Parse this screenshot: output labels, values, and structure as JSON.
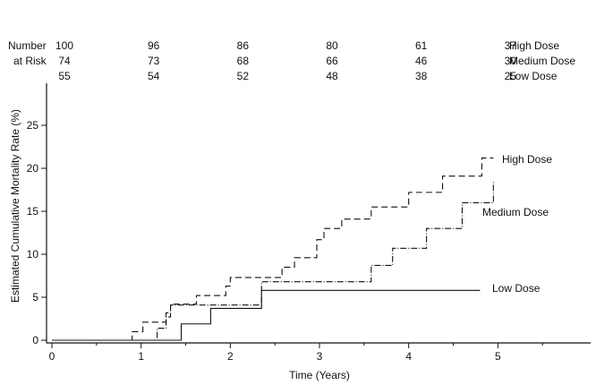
{
  "chart_data": {
    "type": "line",
    "xlabel": "Time (Years)",
    "ylabel": "Estimated Cumulative Mortality Rate (%)",
    "xlim": [
      0,
      6
    ],
    "ylim": [
      0,
      30
    ],
    "x_ticks": [
      "0",
      "1",
      "2",
      "3",
      "4",
      "5"
    ],
    "y_ticks": [
      "0",
      "5",
      "10",
      "15",
      "20",
      "25"
    ],
    "grid": false,
    "legend": "inline labels at right end of each curve",
    "number_at_risk": {
      "row_label_1": "Number",
      "row_label_2": "at Risk",
      "times": [
        0,
        1,
        2,
        3,
        4,
        5
      ],
      "rows": [
        {
          "series": "High Dose",
          "values": [
            "100",
            "96",
            "86",
            "80",
            "61",
            "37"
          ]
        },
        {
          "series": "Medium Dose",
          "values": [
            "74",
            "73",
            "68",
            "66",
            "46",
            "30"
          ]
        },
        {
          "series": "Low Dose",
          "values": [
            "55",
            "54",
            "52",
            "48",
            "38",
            "25"
          ]
        }
      ]
    },
    "series": [
      {
        "name": "High Dose",
        "line_style": "dashed",
        "x": [
          0,
          0.9,
          1.02,
          1.28,
          1.33,
          1.62,
          1.95,
          2.0,
          2.48,
          2.58,
          2.72,
          2.97,
          3.05,
          3.25,
          3.58,
          4.0,
          4.38,
          4.82,
          4.95
        ],
        "y": [
          0,
          1.0,
          2.1,
          3.2,
          4.2,
          5.2,
          6.3,
          7.3,
          7.3,
          8.5,
          9.6,
          11.7,
          13.0,
          14.1,
          15.5,
          17.2,
          19.1,
          21.2,
          21.2
        ]
      },
      {
        "name": "Medium Dose",
        "line_style": "dash-dot",
        "x": [
          0,
          1.18,
          1.28,
          1.33,
          2.2,
          2.35,
          2.35,
          3.58,
          3.58,
          3.82,
          3.82,
          4.2,
          4.2,
          4.6,
          4.6,
          4.95,
          4.95
        ],
        "y": [
          0,
          1.4,
          2.7,
          4.1,
          4.1,
          5.5,
          6.8,
          6.8,
          8.7,
          8.7,
          10.7,
          10.7,
          13.0,
          13.0,
          16.0,
          16.0,
          18.4
        ]
      },
      {
        "name": "Low Dose",
        "line_style": "solid",
        "x": [
          0,
          1.45,
          1.78,
          2.35,
          4.8
        ],
        "y": [
          0,
          1.9,
          3.7,
          5.8,
          5.8
        ]
      }
    ]
  }
}
